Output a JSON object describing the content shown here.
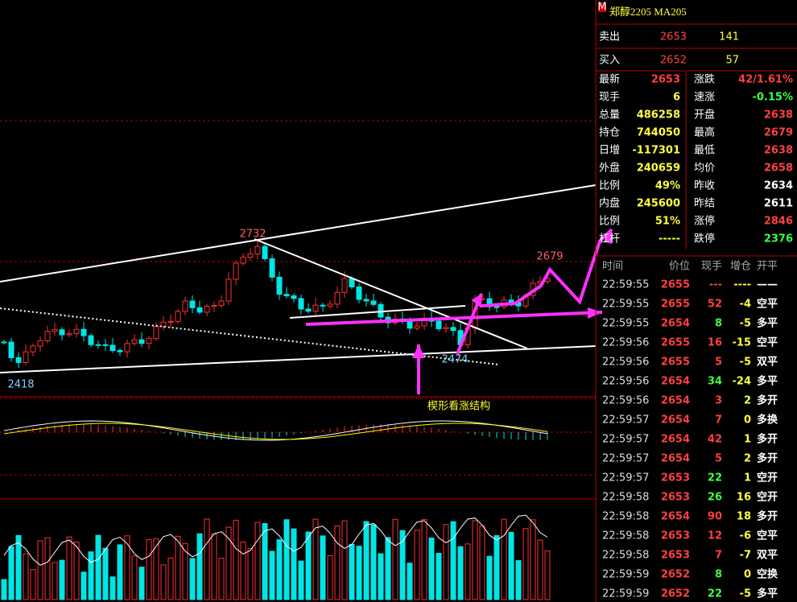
{
  "header": {
    "marker": "M",
    "title": "郑醇2205  MA205"
  },
  "order_book": [
    {
      "label": "卖出",
      "price": "2653",
      "volume": "141"
    },
    {
      "label": "买入",
      "price": "2652",
      "volume": "57"
    }
  ],
  "quote_left": [
    {
      "label": "最新",
      "value": "2653",
      "color": "#ff4040"
    },
    {
      "label": "现手",
      "value": "6",
      "color": "#ffff40"
    },
    {
      "label": "总量",
      "value": "486258",
      "color": "#ffff40"
    },
    {
      "label": "持仓",
      "value": "744050",
      "color": "#ffff40"
    },
    {
      "label": "日增",
      "value": "-117301",
      "color": "#ffff40"
    },
    {
      "label": "外盘",
      "value": "240659",
      "color": "#ffff40"
    },
    {
      "label": "比例",
      "value": "49%",
      "color": "#ffff40"
    },
    {
      "label": "内盘",
      "value": "245600",
      "color": "#ffff40"
    },
    {
      "label": "比例",
      "value": "51%",
      "color": "#ffff40"
    },
    {
      "label": "杠杆",
      "value": "-----",
      "color": "#ffff40"
    }
  ],
  "quote_right": [
    {
      "label": "涨跌",
      "value": "42/1.61%",
      "color": "#ff4040"
    },
    {
      "label": "速涨",
      "value": "-0.15%",
      "color": "#40ff40"
    },
    {
      "label": "开盘",
      "value": "2638",
      "color": "#ff4040"
    },
    {
      "label": "最高",
      "value": "2679",
      "color": "#ff4040"
    },
    {
      "label": "最低",
      "value": "2638",
      "color": "#ff4040"
    },
    {
      "label": "均价",
      "value": "2658",
      "color": "#ff4040"
    },
    {
      "label": "昨收",
      "value": "2634",
      "color": "#ffffff"
    },
    {
      "label": "昨结",
      "value": "2611",
      "color": "#ffffff"
    },
    {
      "label": "涨停",
      "value": "2846",
      "color": "#ff4040"
    },
    {
      "label": "跌停",
      "value": "2376",
      "color": "#40ff40"
    }
  ],
  "ticks": {
    "columns": [
      "时间",
      "价位",
      "现手",
      "增仓",
      "开平"
    ],
    "rows": [
      {
        "cells": [
          "22:59:55",
          "2655",
          "---",
          "----",
          "——"
        ],
        "color": "#ff4040"
      },
      {
        "cells": [
          "22:59:55",
          "2655",
          "52",
          "-4",
          "空平"
        ],
        "color": "#ff4040"
      },
      {
        "cells": [
          "22:59:55",
          "2654",
          "8",
          "-5",
          "多平"
        ],
        "color": "#40ff40"
      },
      {
        "cells": [
          "22:59:56",
          "2655",
          "16",
          "-15",
          "空平"
        ],
        "color": "#ff4040"
      },
      {
        "cells": [
          "22:59:56",
          "2655",
          "5",
          "-5",
          "双平"
        ],
        "color": "#ff4040"
      },
      {
        "cells": [
          "22:59:56",
          "2654",
          "34",
          "-24",
          "多平"
        ],
        "color": "#40ff40"
      },
      {
        "cells": [
          "22:59:56",
          "2654",
          "3",
          "2",
          "多开"
        ],
        "color": "#ff4040"
      },
      {
        "cells": [
          "22:59:57",
          "2654",
          "7",
          "0",
          "多换"
        ],
        "color": "#ff4040"
      },
      {
        "cells": [
          "22:59:57",
          "2654",
          "42",
          "1",
          "多开"
        ],
        "color": "#ff4040"
      },
      {
        "cells": [
          "22:59:57",
          "2654",
          "5",
          "2",
          "多开"
        ],
        "color": "#ff4040"
      },
      {
        "cells": [
          "22:59:57",
          "2653",
          "22",
          "1",
          "空开"
        ],
        "color": "#40ff40"
      },
      {
        "cells": [
          "22:59:58",
          "2653",
          "26",
          "16",
          "空开"
        ],
        "color": "#40ff40"
      },
      {
        "cells": [
          "22:59:58",
          "2654",
          "90",
          "18",
          "多开"
        ],
        "color": "#ff4040"
      },
      {
        "cells": [
          "22:59:58",
          "2653",
          "12",
          "-6",
          "空平"
        ],
        "color": "#ff4040"
      },
      {
        "cells": [
          "22:59:58",
          "2653",
          "7",
          "-7",
          "双平"
        ],
        "color": "#ff4040"
      },
      {
        "cells": [
          "22:59:59",
          "2652",
          "8",
          "0",
          "空换"
        ],
        "color": "#40ff40"
      },
      {
        "cells": [
          "22:59:59",
          "2652",
          "22",
          "-5",
          "多平"
        ],
        "color": "#40ff40"
      }
    ]
  },
  "chart": {
    "labels": [
      "2732",
      "2418",
      "2474",
      "2679"
    ],
    "annotation": "楔形看涨结构"
  }
}
